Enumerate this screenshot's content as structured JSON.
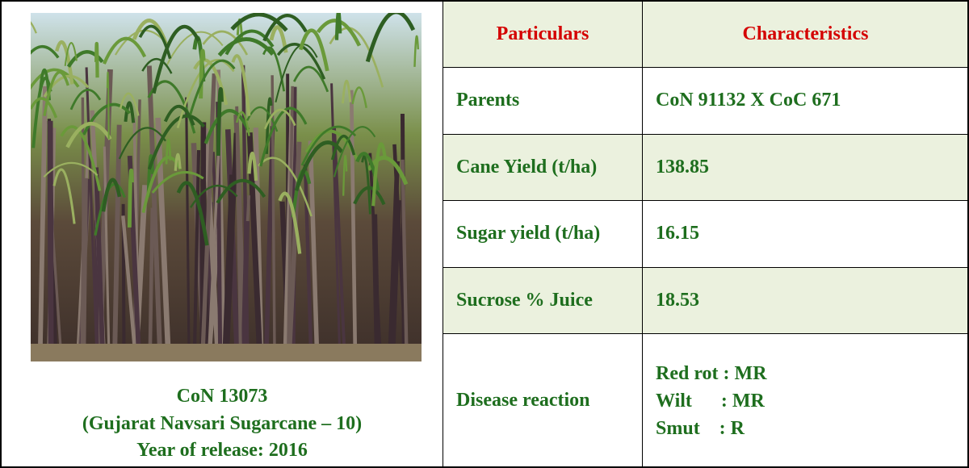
{
  "image": {
    "caption": [
      "CoN 13073",
      "(Gujarat Navsari Sugarcane – 10)",
      "Year of release: 2016"
    ]
  },
  "table": {
    "header": [
      "Particulars",
      "Characteristics"
    ],
    "rows": [
      [
        "Parents",
        "CoN 91132 X CoC 671"
      ],
      [
        "Cane Yield (t/ha)",
        "138.85"
      ],
      [
        "Sugar yield (t/ha)",
        "16.15"
      ],
      [
        "Sucrose % Juice",
        "18.53"
      ],
      [
        "Disease reaction",
        [
          "Red rot : MR",
          "Wilt      : MR",
          "Smut    : R"
        ]
      ]
    ]
  }
}
